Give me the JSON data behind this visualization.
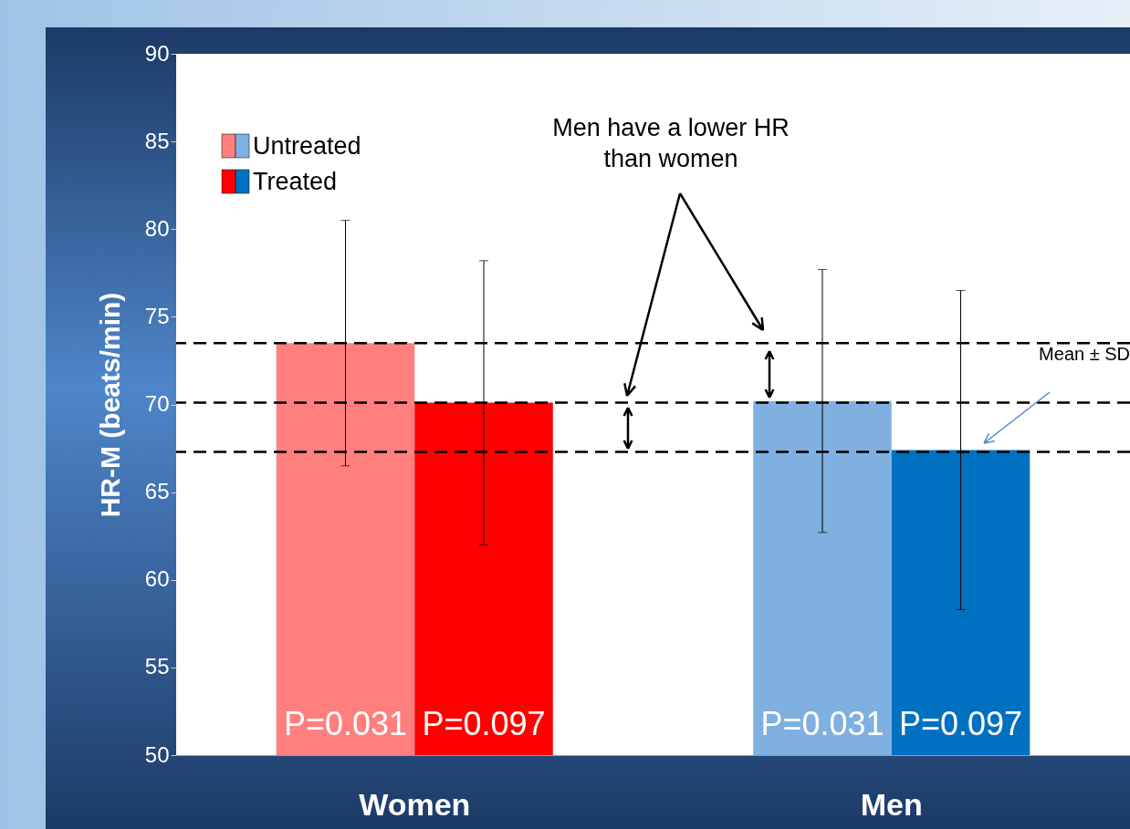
{
  "chart_data": {
    "type": "bar",
    "ylabel": "HR-M (beats/min)",
    "categories": [
      "Women",
      "Men"
    ],
    "series": [
      {
        "name": "Untreated",
        "colors": [
          "#ff7f7f",
          "#7fb0e0"
        ],
        "values": [
          73.5,
          70.2
        ],
        "errors": [
          7.0,
          7.5
        ]
      },
      {
        "name": "Treated",
        "colors": [
          "#ff0000",
          "#0070c0"
        ],
        "values": [
          70.1,
          67.4
        ],
        "errors": [
          8.1,
          9.1
        ]
      }
    ],
    "ylim": [
      50,
      90
    ],
    "yticks": [
      50,
      55,
      60,
      65,
      70,
      75,
      80,
      85,
      90
    ],
    "grid": false,
    "legend": "top left",
    "ref_lines": [
      {
        "axis": "y",
        "value": 73.5,
        "line_style": "dashed"
      },
      {
        "axis": "y",
        "value": 70.1,
        "line_style": "dashed"
      },
      {
        "axis": "y",
        "value": 67.3,
        "line_style": "dashed"
      }
    ],
    "annotations": [
      "P=0.031",
      "P=0.097",
      "P=0.031",
      "P=0.097",
      "Men have a lower HR\nthan women",
      "Mean ± SD"
    ]
  }
}
